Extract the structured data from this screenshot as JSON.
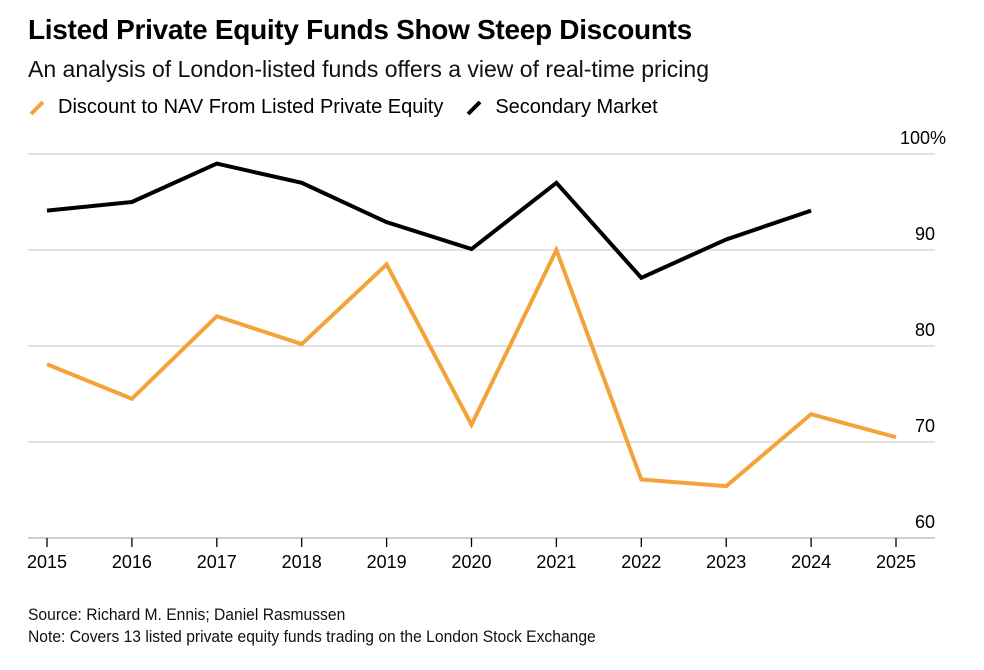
{
  "chart_data": {
    "type": "line",
    "title": "Listed Private Equity Funds Show Steep Discounts",
    "subtitle": "An analysis of London-listed funds offers a view of real-time pricing",
    "xlabel": "",
    "ylabel": "",
    "x": [
      "2015",
      "2016",
      "2017",
      "2018",
      "2019",
      "2020",
      "2021",
      "2022",
      "2023",
      "2024",
      "2025"
    ],
    "ylim": [
      60,
      100
    ],
    "yticks": [
      {
        "value": 100,
        "label": "100%"
      },
      {
        "value": 90,
        "label": "90"
      },
      {
        "value": 80,
        "label": "80"
      },
      {
        "value": 70,
        "label": "70"
      },
      {
        "value": 60,
        "label": "60"
      }
    ],
    "grid": true,
    "y_axis_position": "right",
    "legend_position": "top-left",
    "series": [
      {
        "name": "Discount to NAV From Listed Private Equity",
        "color": "#F4A33A",
        "values": [
          78.1,
          74.5,
          83.1,
          80.2,
          88.5,
          71.8,
          90.0,
          66.1,
          65.4,
          72.9,
          70.5
        ]
      },
      {
        "name": "Secondary Market",
        "color": "#000000",
        "values": [
          94.1,
          95.0,
          99.0,
          97.0,
          92.9,
          90.1,
          97.0,
          87.1,
          91.1,
          94.1,
          null
        ]
      }
    ],
    "source": "Source: Richard M. Ennis; Daniel Rasmussen",
    "note": "Note: Covers 13 listed private equity funds trading on the London Stock Exchange"
  },
  "colors": {
    "gridline": "#D0D0D0",
    "axis": "#BFBFBF",
    "text": "#000000"
  }
}
